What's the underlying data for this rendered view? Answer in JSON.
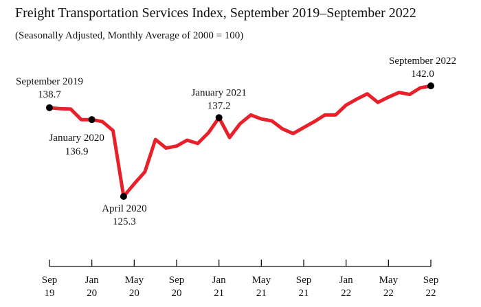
{
  "chart_data": {
    "type": "line",
    "title": "Freight Transportation Services Index, September 2019–September 2022",
    "subtitle": "(Seasonally Adjusted, Monthly Average of 2000 = 100)",
    "xlabel": "",
    "ylabel": "",
    "ylim": [
      125.3,
      142.0
    ],
    "grid": false,
    "color": "#e8202a",
    "x_start": "2019-09",
    "x": [
      "2019-09",
      "2019-10",
      "2019-11",
      "2019-12",
      "2020-01",
      "2020-02",
      "2020-03",
      "2020-04",
      "2020-05",
      "2020-06",
      "2020-07",
      "2020-08",
      "2020-09",
      "2020-10",
      "2020-11",
      "2020-12",
      "2021-01",
      "2021-02",
      "2021-03",
      "2021-04",
      "2021-05",
      "2021-06",
      "2021-07",
      "2021-08",
      "2021-09",
      "2021-10",
      "2021-11",
      "2021-12",
      "2022-01",
      "2022-02",
      "2022-03",
      "2022-04",
      "2022-05",
      "2022-06",
      "2022-07",
      "2022-08",
      "2022-09"
    ],
    "values": [
      138.7,
      138.55,
      138.5,
      136.9,
      136.9,
      136.6,
      135.25,
      125.3,
      127.2,
      129.0,
      133.9,
      132.6,
      132.9,
      133.8,
      133.3,
      134.9,
      137.2,
      134.2,
      136.3,
      137.6,
      137.0,
      136.7,
      135.5,
      134.8,
      135.7,
      136.6,
      137.6,
      137.6,
      139.1,
      140.0,
      140.8,
      139.5,
      140.3,
      141.0,
      140.7,
      141.7,
      142.0
    ],
    "x_ticks": [
      {
        "month": "Sep",
        "year": "19"
      },
      {
        "month": "Jan",
        "year": "20"
      },
      {
        "month": "May",
        "year": "20"
      },
      {
        "month": "Sep",
        "year": "20"
      },
      {
        "month": "Jan",
        "year": "21"
      },
      {
        "month": "May",
        "year": "21"
      },
      {
        "month": "Sep",
        "year": "21"
      },
      {
        "month": "Jan",
        "year": "22"
      },
      {
        "month": "May",
        "year": "22"
      },
      {
        "month": "Sep",
        "year": "22"
      }
    ],
    "annotations": [
      {
        "index": 0,
        "label": "September 2019",
        "value": "138.7",
        "position": "above"
      },
      {
        "index": 4,
        "label": "January 2020",
        "value": "136.9",
        "position": "below"
      },
      {
        "index": 7,
        "label": "April 2020",
        "value": "125.3",
        "position": "below"
      },
      {
        "index": 16,
        "label": "January 2021",
        "value": "137.2",
        "position": "above"
      },
      {
        "index": 36,
        "label": "September 2022",
        "value": "142.0",
        "position": "above"
      }
    ]
  }
}
